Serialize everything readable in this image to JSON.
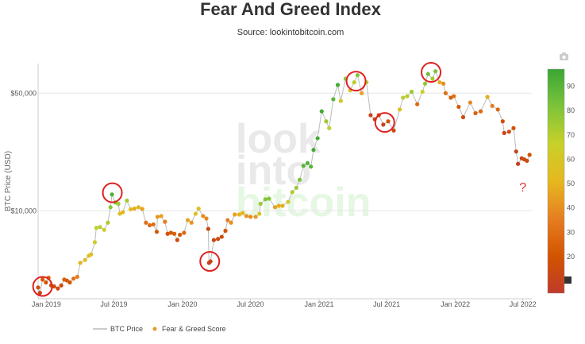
{
  "chart_data": {
    "type": "scatter",
    "title": "Fear And Greed Index",
    "subtitle": "Source: lookintobitcoin.com",
    "ylabel": "BTC Price (USD)",
    "y_scale": "log",
    "ylim": [
      3000,
      75000
    ],
    "xlim": [
      "2018-12-10",
      "2022-07-25"
    ],
    "x_ticks": [
      {
        "date": "2019-01-01",
        "label": "Jan 2019"
      },
      {
        "date": "2019-07-01",
        "label": "Jul 2019"
      },
      {
        "date": "2020-01-01",
        "label": "Jan 2020"
      },
      {
        "date": "2020-07-01",
        "label": "Jul 2020"
      },
      {
        "date": "2021-01-01",
        "label": "Jan 2021"
      },
      {
        "date": "2021-07-01",
        "label": "Jul 2021"
      },
      {
        "date": "2022-01-01",
        "label": "Jan 2022"
      },
      {
        "date": "2022-07-01",
        "label": "Jul 2022"
      }
    ],
    "y_ticks": [
      {
        "value": 10000,
        "label": "$10,000"
      },
      {
        "value": 50000,
        "label": "$50,000"
      }
    ],
    "color_scale": {
      "min": 5,
      "max": 97,
      "ticks": [
        20,
        30,
        40,
        50,
        60,
        70,
        80,
        90
      ],
      "stops": [
        "#c0392b",
        "#d35400",
        "#e67e22",
        "#e6b81e",
        "#c8d12a",
        "#7cc43a",
        "#3aa635"
      ]
    },
    "series": [
      {
        "name": "BTC Price",
        "style": "line",
        "color": "#bbbbbb",
        "points": [
          [
            "2018-12-10",
            3500,
            15
          ],
          [
            "2018-12-15",
            3250,
            12
          ],
          [
            "2018-12-22",
            3900,
            22
          ],
          [
            "2018-12-31",
            3750,
            20
          ],
          [
            "2019-01-07",
            4000,
            25
          ],
          [
            "2019-01-14",
            3600,
            18
          ],
          [
            "2019-01-22",
            3550,
            16
          ],
          [
            "2019-02-01",
            3450,
            14
          ],
          [
            "2019-02-10",
            3600,
            16
          ],
          [
            "2019-02-18",
            3900,
            25
          ],
          [
            "2019-02-25",
            3850,
            22
          ],
          [
            "2019-03-05",
            3750,
            20
          ],
          [
            "2019-03-15",
            3950,
            30
          ],
          [
            "2019-03-25",
            4050,
            35
          ],
          [
            "2019-04-02",
            4900,
            50
          ],
          [
            "2019-04-15",
            5100,
            55
          ],
          [
            "2019-04-25",
            5400,
            55
          ],
          [
            "2019-05-01",
            5500,
            58
          ],
          [
            "2019-05-11",
            6500,
            62
          ],
          [
            "2019-05-15",
            7900,
            68
          ],
          [
            "2019-05-25",
            8000,
            70
          ],
          [
            "2019-06-05",
            7700,
            65
          ],
          [
            "2019-06-15",
            8500,
            72
          ],
          [
            "2019-06-22",
            10500,
            80
          ],
          [
            "2019-06-26",
            12500,
            92
          ],
          [
            "2019-07-05",
            11200,
            82
          ],
          [
            "2019-07-13",
            11000,
            75
          ],
          [
            "2019-07-17",
            9600,
            55
          ],
          [
            "2019-07-25",
            9800,
            50
          ],
          [
            "2019-08-05",
            11500,
            75
          ],
          [
            "2019-08-15",
            10200,
            52
          ],
          [
            "2019-08-25",
            10300,
            48
          ],
          [
            "2019-09-05",
            10500,
            50
          ],
          [
            "2019-09-15",
            10250,
            45
          ],
          [
            "2019-09-25",
            8500,
            30
          ],
          [
            "2019-10-05",
            8200,
            28
          ],
          [
            "2019-10-15",
            8300,
            30
          ],
          [
            "2019-10-24",
            7500,
            22
          ],
          [
            "2019-10-26",
            9200,
            42
          ],
          [
            "2019-11-05",
            9300,
            45
          ],
          [
            "2019-11-15",
            8600,
            35
          ],
          [
            "2019-11-22",
            7300,
            20
          ],
          [
            "2019-12-01",
            7400,
            22
          ],
          [
            "2019-12-10",
            7300,
            25
          ],
          [
            "2019-12-18",
            6700,
            15
          ],
          [
            "2019-12-25",
            7200,
            22
          ],
          [
            "2020-01-05",
            7400,
            28
          ],
          [
            "2020-01-15",
            8800,
            45
          ],
          [
            "2020-01-25",
            8500,
            42
          ],
          [
            "2020-02-05",
            9600,
            55
          ],
          [
            "2020-02-13",
            10300,
            58
          ],
          [
            "2020-02-25",
            9300,
            40
          ],
          [
            "2020-03-05",
            9000,
            38
          ],
          [
            "2020-03-10",
            7800,
            15
          ],
          [
            "2020-03-12",
            4900,
            8
          ],
          [
            "2020-03-16",
            5000,
            10
          ],
          [
            "2020-03-25",
            6700,
            12
          ],
          [
            "2020-04-05",
            6800,
            14
          ],
          [
            "2020-04-15",
            7000,
            15
          ],
          [
            "2020-04-25",
            7600,
            20
          ],
          [
            "2020-05-01",
            8800,
            35
          ],
          [
            "2020-05-10",
            8500,
            40
          ],
          [
            "2020-05-20",
            9500,
            45
          ],
          [
            "2020-06-01",
            9500,
            50
          ],
          [
            "2020-06-10",
            9700,
            50
          ],
          [
            "2020-06-20",
            9300,
            42
          ],
          [
            "2020-07-01",
            9200,
            40
          ],
          [
            "2020-07-15",
            9200,
            43
          ],
          [
            "2020-07-25",
            9600,
            58
          ],
          [
            "2020-07-28",
            11000,
            75
          ],
          [
            "2020-08-10",
            11700,
            80
          ],
          [
            "2020-08-20",
            11800,
            80
          ],
          [
            "2020-09-05",
            10500,
            45
          ],
          [
            "2020-09-15",
            10700,
            48
          ],
          [
            "2020-09-25",
            10700,
            48
          ],
          [
            "2020-10-10",
            11300,
            62
          ],
          [
            "2020-10-21",
            12900,
            72
          ],
          [
            "2020-11-01",
            13700,
            75
          ],
          [
            "2020-11-10",
            15300,
            82
          ],
          [
            "2020-11-20",
            18500,
            90
          ],
          [
            "2020-12-01",
            19200,
            92
          ],
          [
            "2020-12-10",
            18300,
            90
          ],
          [
            "2020-12-17",
            23000,
            95
          ],
          [
            "2020-12-28",
            27000,
            94
          ],
          [
            "2021-01-08",
            39000,
            95
          ],
          [
            "2021-01-20",
            34000,
            75
          ],
          [
            "2021-01-28",
            31000,
            68
          ],
          [
            "2021-02-08",
            46000,
            90
          ],
          [
            "2021-02-20",
            56000,
            95
          ],
          [
            "2021-02-28",
            45000,
            62
          ],
          [
            "2021-03-13",
            61000,
            78
          ],
          [
            "2021-03-25",
            52000,
            60
          ],
          [
            "2021-04-05",
            58000,
            70
          ],
          [
            "2021-04-14",
            64000,
            80
          ],
          [
            "2021-04-25",
            50000,
            45
          ],
          [
            "2021-05-08",
            58000,
            72
          ],
          [
            "2021-05-19",
            37000,
            12
          ],
          [
            "2021-05-30",
            35000,
            15
          ],
          [
            "2021-06-10",
            37000,
            18
          ],
          [
            "2021-06-22",
            32500,
            10
          ],
          [
            "2021-07-05",
            34000,
            20
          ],
          [
            "2021-07-20",
            30000,
            15
          ],
          [
            "2021-08-05",
            40000,
            55
          ],
          [
            "2021-08-14",
            47000,
            70
          ],
          [
            "2021-08-25",
            48000,
            70
          ],
          [
            "2021-09-06",
            51000,
            76
          ],
          [
            "2021-09-21",
            43000,
            28
          ],
          [
            "2021-10-05",
            51000,
            65
          ],
          [
            "2021-10-12",
            57000,
            78
          ],
          [
            "2021-10-20",
            65000,
            84
          ],
          [
            "2021-11-01",
            61000,
            74
          ],
          [
            "2021-11-09",
            67500,
            82
          ],
          [
            "2021-11-20",
            58000,
            48
          ],
          [
            "2021-11-30",
            57000,
            40
          ],
          [
            "2021-12-06",
            50000,
            30
          ],
          [
            "2021-12-20",
            47000,
            25
          ],
          [
            "2021-12-28",
            48000,
            30
          ],
          [
            "2022-01-10",
            41500,
            22
          ],
          [
            "2022-01-22",
            36000,
            15
          ],
          [
            "2022-02-10",
            44000,
            38
          ],
          [
            "2022-02-24",
            38000,
            25
          ],
          [
            "2022-03-10",
            39000,
            28
          ],
          [
            "2022-03-28",
            47500,
            48
          ],
          [
            "2022-04-10",
            42000,
            35
          ],
          [
            "2022-04-25",
            40000,
            28
          ],
          [
            "2022-05-08",
            34000,
            18
          ],
          [
            "2022-05-12",
            29000,
            12
          ],
          [
            "2022-05-25",
            29500,
            15
          ],
          [
            "2022-06-06",
            31000,
            18
          ],
          [
            "2022-06-13",
            22500,
            10
          ],
          [
            "2022-06-18",
            19000,
            8
          ],
          [
            "2022-06-28",
            20500,
            12
          ],
          [
            "2022-07-05",
            20200,
            14
          ],
          [
            "2022-07-12",
            19800,
            16
          ],
          [
            "2022-07-19",
            21500,
            20
          ]
        ]
      },
      {
        "name": "Fear & Greed Score",
        "style": "dots",
        "color": "#e69a2e"
      }
    ],
    "annotations": [
      {
        "kind": "circle",
        "date": "2018-12-22",
        "price": 3550
      },
      {
        "kind": "circle",
        "date": "2019-06-27",
        "price": 12800
      },
      {
        "kind": "circle",
        "date": "2020-03-14",
        "price": 5000
      },
      {
        "kind": "circle",
        "date": "2021-04-10",
        "price": 59000
      },
      {
        "kind": "circle",
        "date": "2021-06-26",
        "price": 33500
      },
      {
        "kind": "circle",
        "date": "2021-10-28",
        "price": 66500
      },
      {
        "kind": "text",
        "text": "?",
        "date": "2022-07-01",
        "price": 13000
      }
    ],
    "watermark": [
      "look",
      "into",
      "bitcoin"
    ]
  }
}
